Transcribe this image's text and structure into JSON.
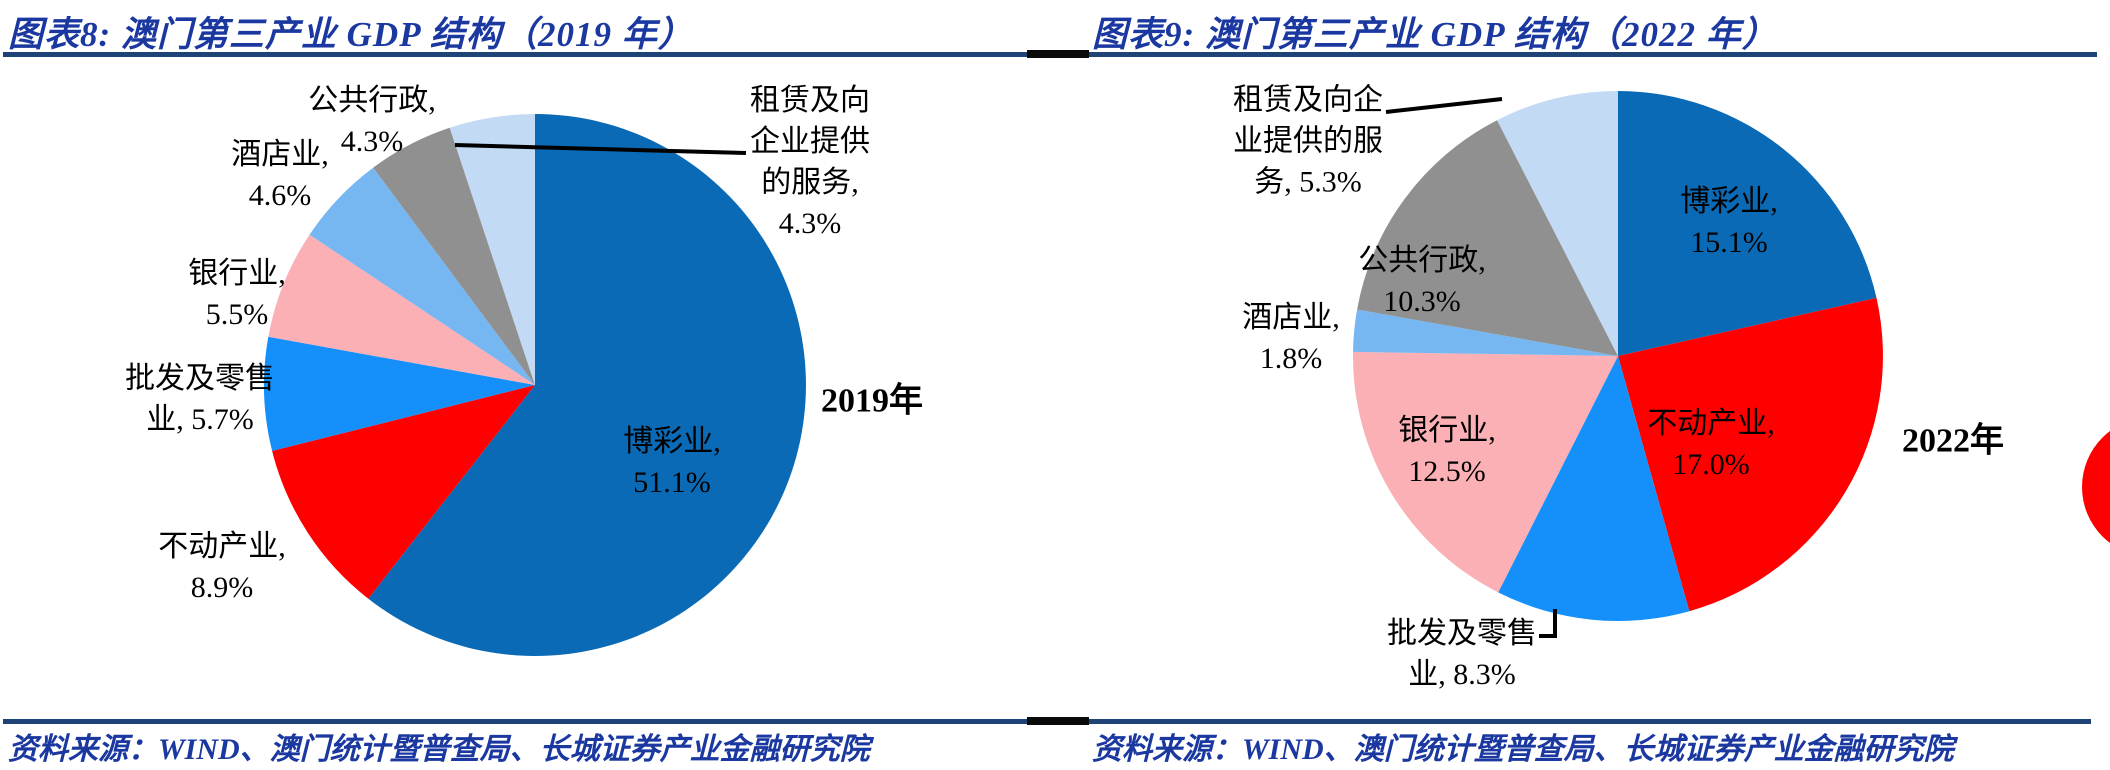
{
  "page": {
    "background": "#FFFFFF"
  },
  "theme": {
    "title_color": "#1A38A0",
    "rule_color": "#1E4377",
    "gutter_mark_color": "#0A0A0A",
    "label_color": "#000000",
    "leader_line_color": "#000000"
  },
  "edge_artifact": {
    "description": "clipped red pie fragment of adjacent figure at far right edge",
    "color": "#FE0000"
  },
  "chart_data": [
    {
      "id": "gdp-2019",
      "type": "pie",
      "title": "图表8:  澳门第三产业 GDP 结构（2019 年）",
      "year_annotation": "2019年",
      "source": "资料来源：WIND、澳门统计暨普查局、长城证券产业金融研究院",
      "start_angle_deg": 0,
      "direction": "clockwise",
      "normalized_to_sum": true,
      "legend": "none",
      "slices": [
        {
          "id": "gaming",
          "category": "博彩业",
          "value": 51.1,
          "color": "#0A6AB6",
          "label_inside": true,
          "label_lines": [
            "博彩业,",
            "51.1%"
          ]
        },
        {
          "id": "real-estate",
          "category": "不动产业",
          "value": 8.9,
          "color": "#FE0000",
          "label_inside": false,
          "label_lines": [
            "不动产业,",
            "8.9%"
          ]
        },
        {
          "id": "wholesale-retail",
          "category": "批发及零售业",
          "value": 5.7,
          "color": "#1590FB",
          "label_inside": false,
          "label_lines": [
            "批发及零售",
            "业, 5.7%"
          ]
        },
        {
          "id": "banking",
          "category": "银行业",
          "value": 5.5,
          "color": "#FBB0B5",
          "label_inside": false,
          "label_lines": [
            "银行业,",
            "5.5%"
          ]
        },
        {
          "id": "hotels",
          "category": "酒店业",
          "value": 4.6,
          "color": "#76B7F2",
          "label_inside": false,
          "label_lines": [
            "酒店业,",
            "4.6%"
          ]
        },
        {
          "id": "public-admin",
          "category": "公共行政",
          "value": 4.3,
          "color": "#909090",
          "label_inside": false,
          "label_lines": [
            "公共行政,",
            "4.3%"
          ]
        },
        {
          "id": "leasing-business-services",
          "category": "租赁及向企业提供的服务",
          "value": 4.3,
          "color": "#C2DAF4",
          "label_inside": false,
          "label_lines": [
            "租赁及向",
            "企业提供",
            "的服务,",
            "4.3%"
          ]
        }
      ]
    },
    {
      "id": "gdp-2022",
      "type": "pie",
      "title": "图表9:  澳门第三产业 GDP 结构（2022 年）",
      "year_annotation": "2022年",
      "source": "资料来源：WIND、澳门统计暨普查局、长城证券产业金融研究院",
      "start_angle_deg": 0,
      "direction": "clockwise",
      "normalized_to_sum": true,
      "legend": "none",
      "slices": [
        {
          "id": "gaming",
          "category": "博彩业",
          "value": 15.1,
          "color": "#0A6AB6",
          "label_inside": true,
          "label_lines": [
            "博彩业,",
            "15.1%"
          ]
        },
        {
          "id": "real-estate",
          "category": "不动产业",
          "value": 17.0,
          "color": "#FE0000",
          "label_inside": true,
          "label_lines": [
            "不动产业,",
            "17.0%"
          ]
        },
        {
          "id": "wholesale-retail",
          "category": "批发及零售业",
          "value": 8.3,
          "color": "#1590FB",
          "label_inside": false,
          "label_lines": [
            "批发及零售",
            "业, 8.3%"
          ]
        },
        {
          "id": "banking",
          "category": "银行业",
          "value": 12.5,
          "color": "#FBB0B5",
          "label_inside": true,
          "label_lines": [
            "银行业,",
            "12.5%"
          ]
        },
        {
          "id": "hotels",
          "category": "酒店业",
          "value": 1.8,
          "color": "#76B7F2",
          "label_inside": false,
          "label_lines": [
            "酒店业,",
            "1.8%"
          ]
        },
        {
          "id": "public-admin",
          "category": "公共行政",
          "value": 10.3,
          "color": "#909090",
          "label_inside": true,
          "label_lines": [
            "公共行政,",
            "10.3%"
          ]
        },
        {
          "id": "leasing-business-services",
          "category": "租赁及向企业提供的服务",
          "value": 5.3,
          "color": "#C2DAF4",
          "label_inside": false,
          "label_lines": [
            "租赁及向企",
            "业提供的服",
            "务, 5.3%"
          ]
        }
      ]
    }
  ]
}
